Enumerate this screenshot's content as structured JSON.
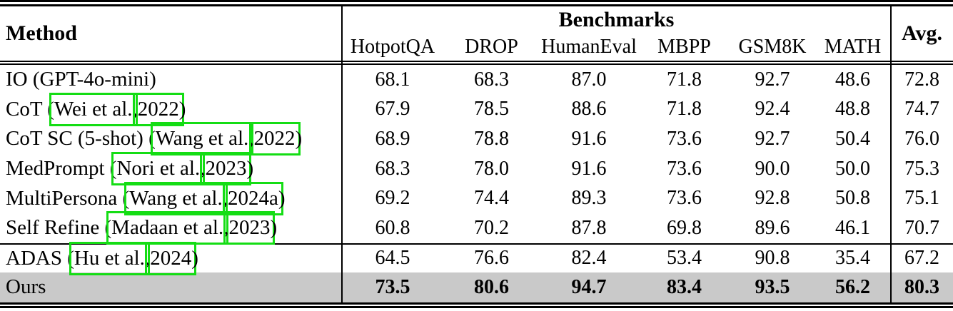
{
  "colors": {
    "highlight_row_bg": "#c9c9c9",
    "annotation_box": "#14dd14",
    "text": "#000000",
    "rule": "#000000"
  },
  "table": {
    "header": {
      "method_label": "Method",
      "group_label": "Benchmarks",
      "columns": [
        "HotpotQA",
        "DROP",
        "HumanEval",
        "MBPP",
        "GSM8K",
        "MATH"
      ],
      "avg_label": "Avg."
    },
    "rows": [
      {
        "method_segments": [
          {
            "text": "IO (GPT-4o-mini)",
            "link": false
          }
        ],
        "values": [
          "68.1",
          "68.3",
          "87.0",
          "71.8",
          "92.7",
          "48.6"
        ],
        "avg": "72.8",
        "emphasis": false,
        "highlighted": false,
        "rule_above": false
      },
      {
        "method_segments": [
          {
            "text": "CoT (",
            "link": false
          },
          {
            "text": "Wei et al.",
            "link": true
          },
          {
            "text": ", ",
            "link": false
          },
          {
            "text": "2022",
            "link": true
          },
          {
            "text": ")",
            "link": false
          }
        ],
        "values": [
          "67.9",
          "78.5",
          "88.6",
          "71.8",
          "92.4",
          "48.8"
        ],
        "avg": "74.7",
        "emphasis": false,
        "highlighted": false,
        "rule_above": false
      },
      {
        "method_segments": [
          {
            "text": "CoT SC (5-shot) (",
            "link": false
          },
          {
            "text": "Wang et al.",
            "link": true
          },
          {
            "text": ", ",
            "link": false
          },
          {
            "text": "2022",
            "link": true
          },
          {
            "text": ")",
            "link": false
          }
        ],
        "values": [
          "68.9",
          "78.8",
          "91.6",
          "73.6",
          "92.7",
          "50.4"
        ],
        "avg": "76.0",
        "emphasis": false,
        "highlighted": false,
        "rule_above": false
      },
      {
        "method_segments": [
          {
            "text": "MedPrompt (",
            "link": false
          },
          {
            "text": "Nori et al.",
            "link": true
          },
          {
            "text": ", ",
            "link": false
          },
          {
            "text": "2023",
            "link": true
          },
          {
            "text": ")",
            "link": false
          }
        ],
        "values": [
          "68.3",
          "78.0",
          "91.6",
          "73.6",
          "90.0",
          "50.0"
        ],
        "avg": "75.3",
        "emphasis": false,
        "highlighted": false,
        "rule_above": false
      },
      {
        "method_segments": [
          {
            "text": "MultiPersona (",
            "link": false
          },
          {
            "text": "Wang et al.",
            "link": true
          },
          {
            "text": ", ",
            "link": false
          },
          {
            "text": "2024a",
            "link": true
          },
          {
            "text": ")",
            "link": false
          }
        ],
        "values": [
          "69.2",
          "74.4",
          "89.3",
          "73.6",
          "92.8",
          "50.8"
        ],
        "avg": "75.1",
        "emphasis": false,
        "highlighted": false,
        "rule_above": false
      },
      {
        "method_segments": [
          {
            "text": "Self Refine (",
            "link": false
          },
          {
            "text": "Madaan et al.",
            "link": true
          },
          {
            "text": ", ",
            "link": false
          },
          {
            "text": "2023",
            "link": true
          },
          {
            "text": ")",
            "link": false
          }
        ],
        "values": [
          "60.8",
          "70.2",
          "87.8",
          "69.8",
          "89.6",
          "46.1"
        ],
        "avg": "70.7",
        "emphasis": false,
        "highlighted": false,
        "rule_above": false
      },
      {
        "method_segments": [
          {
            "text": "ADAS (",
            "link": false
          },
          {
            "text": "Hu et al.",
            "link": true
          },
          {
            "text": ", ",
            "link": false
          },
          {
            "text": "2024",
            "link": true
          },
          {
            "text": ")",
            "link": false
          }
        ],
        "values": [
          "64.5",
          "76.6",
          "82.4",
          "53.4",
          "90.8",
          "35.4"
        ],
        "avg": "67.2",
        "emphasis": false,
        "highlighted": false,
        "rule_above": true
      },
      {
        "method_segments": [
          {
            "text": "Ours",
            "link": false
          }
        ],
        "values": [
          "73.5",
          "80.6",
          "94.7",
          "83.4",
          "93.5",
          "56.2"
        ],
        "avg": "80.3",
        "emphasis": true,
        "highlighted": true,
        "rule_above": false
      }
    ]
  }
}
